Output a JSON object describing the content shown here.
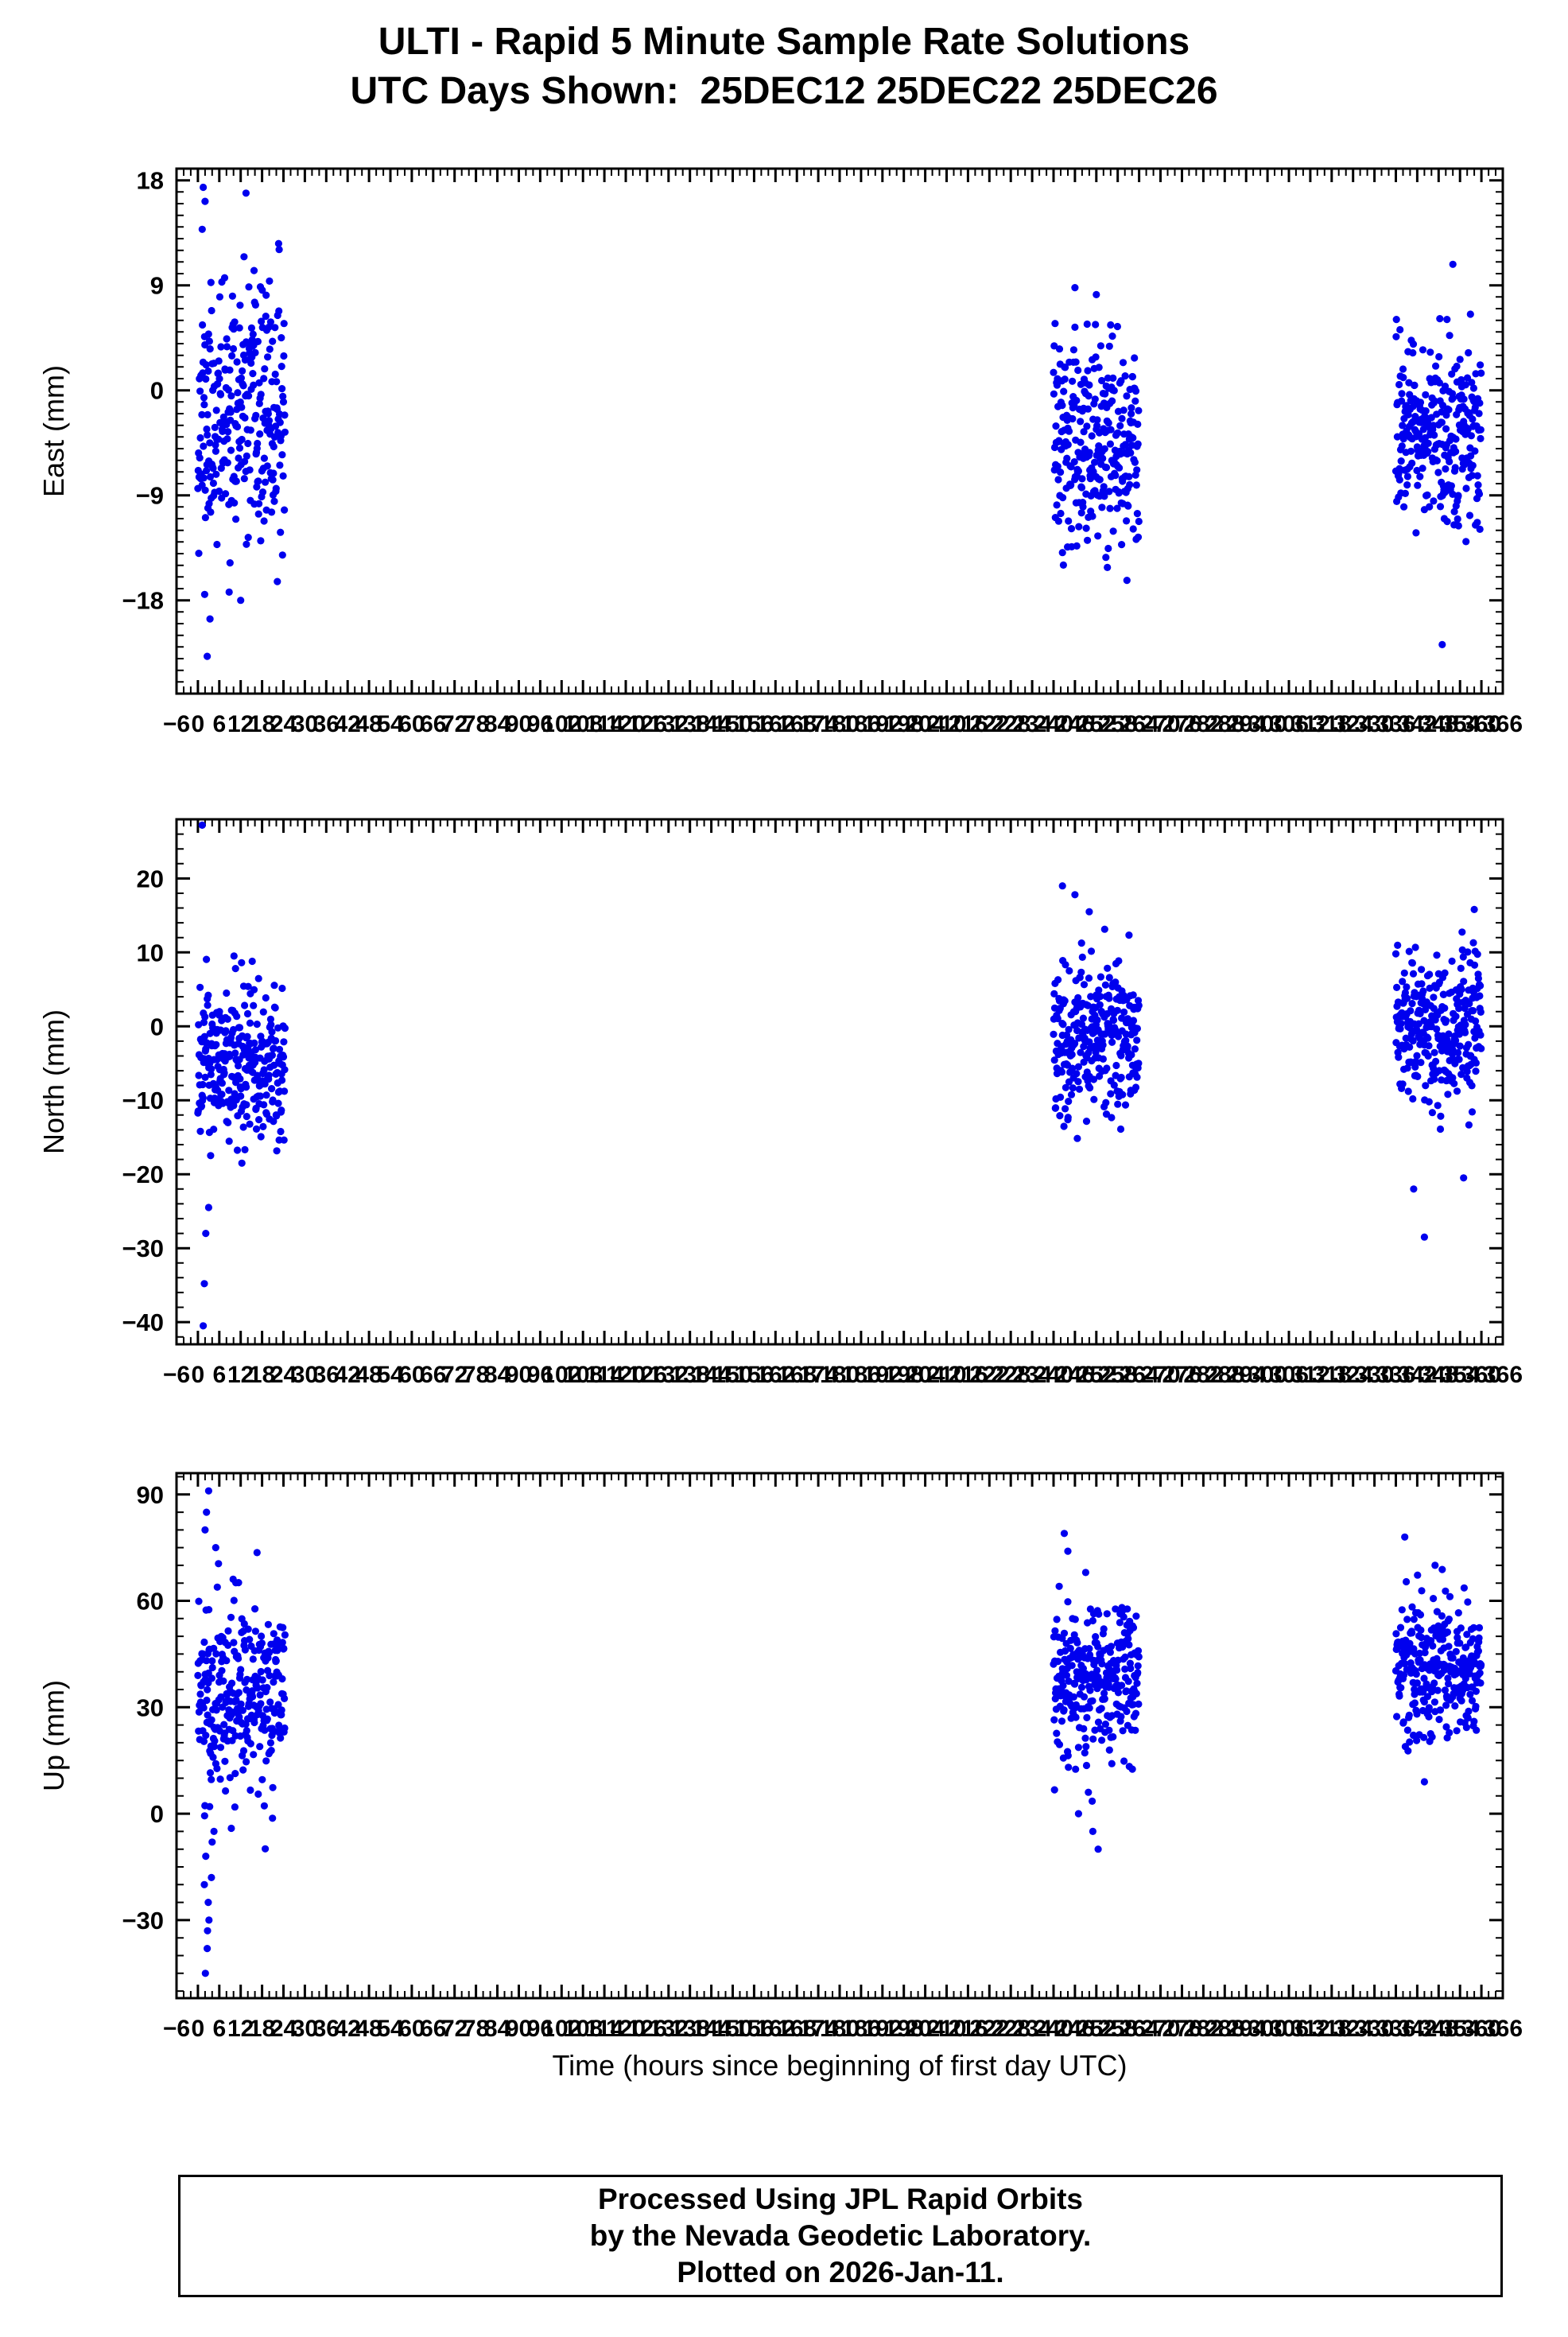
{
  "title": "ULTI - Rapid 5 Minute Sample Rate Solutions",
  "subtitle": "UTC Days Shown:  25DEC12 25DEC22 25DEC26",
  "xlabel": "Time (hours since beginning of first day UTC)",
  "footer": {
    "line1": "Processed Using JPL Rapid Orbits",
    "line2": "by the Nevada Geodetic Laboratory.",
    "line3": "Plotted on 2026-Jan-11."
  },
  "colors": {
    "point": "#0000ee",
    "axis": "#000000"
  },
  "chart_data": [
    {
      "type": "scatter",
      "panel": "East",
      "ylabel": "East (mm)",
      "xlim": [
        -6,
        366
      ],
      "ylim": [
        -26,
        19
      ],
      "yticks": [
        -18,
        -9,
        0,
        9,
        18
      ],
      "ytick_minor_step": 1,
      "xticks": {
        "start": -6,
        "end": 366,
        "step": 6,
        "minor_step": 2
      },
      "clusters": [
        {
          "x_start": 0,
          "x_end": 24.5,
          "count": 288,
          "y_mean": -2.5,
          "y_sd": 5.2,
          "y_min": -23,
          "y_max": 17.5,
          "seed": 11,
          "outliers": [
            [
              1.5,
              17.4
            ],
            [
              2.0,
              16.2
            ],
            [
              1.2,
              13.8
            ],
            [
              13.5,
              16.9
            ],
            [
              2.6,
              -22.8
            ],
            [
              3.4,
              -19.6
            ],
            [
              1.9,
              -17.5
            ],
            [
              12.0,
              -18.0
            ]
          ]
        },
        {
          "x_start": 240,
          "x_end": 264,
          "count": 288,
          "y_mean": -4.5,
          "y_sd": 4.3,
          "y_min": -16.8,
          "y_max": 9.2,
          "seed": 12,
          "outliers": [
            [
              246.0,
              8.8
            ],
            [
              252.0,
              8.2
            ]
          ]
        },
        {
          "x_start": 336,
          "x_end": 360,
          "count": 288,
          "y_mean": -4.2,
          "y_sd": 4.0,
          "y_min": -13.5,
          "y_max": 10.5,
          "seed": 13,
          "outliers": [
            [
              349.0,
              -21.8
            ],
            [
              352.0,
              10.8
            ]
          ]
        }
      ]
    },
    {
      "type": "scatter",
      "panel": "North",
      "ylabel": "North (mm)",
      "xlim": [
        -6,
        366
      ],
      "ylim": [
        -43,
        28
      ],
      "yticks": [
        -40,
        -30,
        -20,
        -10,
        0,
        10,
        20
      ],
      "ytick_minor_step": 2,
      "xticks": {
        "start": -6,
        "end": 366,
        "step": 6,
        "minor_step": 2
      },
      "clusters": [
        {
          "x_start": 0,
          "x_end": 24.5,
          "count": 288,
          "y_mean": -5.0,
          "y_sd": 5.5,
          "y_min": -30,
          "y_max": 14.5,
          "seed": 21,
          "outliers": [
            [
              1.2,
              27.2
            ],
            [
              1.5,
              -40.5
            ],
            [
              1.8,
              -34.8
            ],
            [
              2.2,
              -28.0
            ],
            [
              3.0,
              -24.5
            ]
          ]
        },
        {
          "x_start": 240,
          "x_end": 264,
          "count": 288,
          "y_mean": -1.5,
          "y_sd": 5.2,
          "y_min": -15.5,
          "y_max": 14.0,
          "seed": 22,
          "outliers": [
            [
              242.5,
              19.0
            ],
            [
              246.0,
              17.8
            ],
            [
              250.0,
              15.5
            ]
          ]
        },
        {
          "x_start": 336,
          "x_end": 360,
          "count": 288,
          "y_mean": -0.5,
          "y_sd": 5.2,
          "y_min": -17.0,
          "y_max": 16.0,
          "seed": 23,
          "outliers": [
            [
              344.0,
              -28.5
            ],
            [
              341.0,
              -22.0
            ],
            [
              355.0,
              -20.5
            ],
            [
              358.0,
              15.8
            ]
          ]
        }
      ]
    },
    {
      "type": "scatter",
      "panel": "Up",
      "ylabel": "Up (mm)",
      "xlim": [
        -6,
        366
      ],
      "ylim": [
        -52,
        96
      ],
      "yticks": [
        -30,
        0,
        30,
        60,
        90
      ],
      "ytick_minor_step": 5,
      "xticks": {
        "start": -6,
        "end": 366,
        "step": 6,
        "minor_step": 2
      },
      "clusters": [
        {
          "x_start": 0,
          "x_end": 24.5,
          "count": 288,
          "y_mean": 33,
          "y_sd": 13,
          "y_min": -20,
          "y_max": 80,
          "seed": 31,
          "outliers": [
            [
              3.0,
              91
            ],
            [
              2.4,
              85
            ],
            [
              2.0,
              80
            ],
            [
              5.0,
              75
            ],
            [
              2.1,
              -45
            ],
            [
              2.6,
              -38
            ],
            [
              2.7,
              -33
            ],
            [
              3.1,
              -30
            ],
            [
              2.9,
              -25
            ],
            [
              1.8,
              -20
            ],
            [
              3.8,
              -18
            ],
            [
              2.2,
              -12
            ],
            [
              4.0,
              -8
            ],
            [
              4.5,
              -5
            ],
            [
              3.3,
              2
            ]
          ]
        },
        {
          "x_start": 240,
          "x_end": 264,
          "count": 288,
          "y_mean": 38,
          "y_sd": 11,
          "y_min": -5,
          "y_max": 70,
          "seed": 32,
          "outliers": [
            [
              243.0,
              79
            ],
            [
              244.0,
              74
            ],
            [
              249.0,
              68
            ],
            [
              252.5,
              -10
            ],
            [
              251.0,
              -5
            ],
            [
              247.0,
              0
            ]
          ]
        },
        {
          "x_start": 336,
          "x_end": 360,
          "count": 288,
          "y_mean": 41,
          "y_sd": 10,
          "y_min": 8,
          "y_max": 70,
          "seed": 33,
          "outliers": [
            [
              338.5,
              78
            ],
            [
              347.0,
              70
            ],
            [
              344.0,
              9
            ]
          ]
        }
      ]
    }
  ]
}
